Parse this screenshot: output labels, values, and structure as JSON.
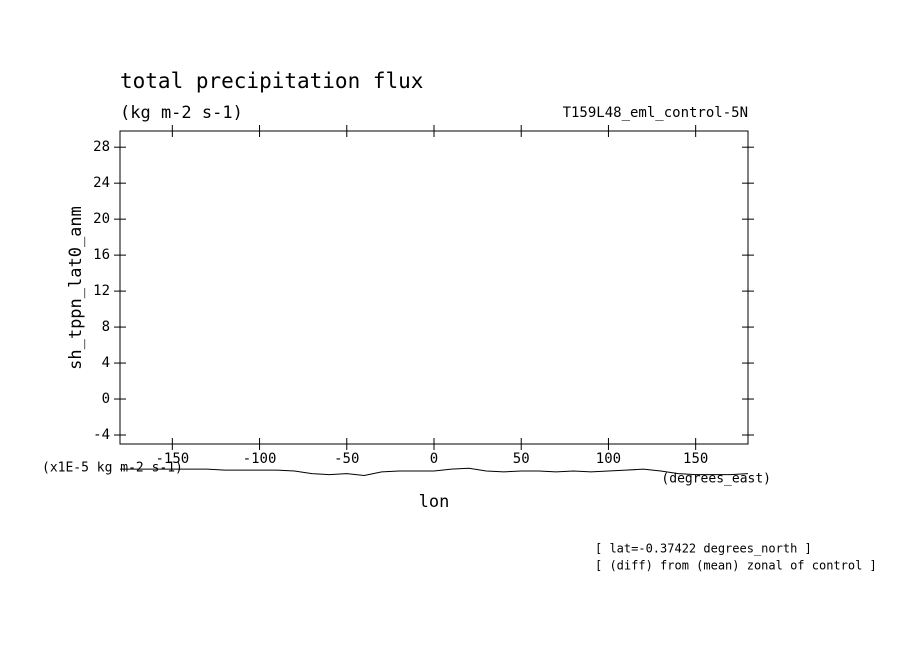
{
  "chart_data": {
    "type": "line",
    "title": "total precipitation flux",
    "subtitle": "(kg m-2 s-1)",
    "dataset_label": "T159L48_eml_control-5N",
    "y_label": "sh_tppn_lat0_anm",
    "y_units": "(x1E-5 kg m-2 s-1)",
    "x_label": "lon",
    "x_units": "(degrees_east)",
    "notes": [
      "[ lat=-0.37422 degrees_north ]",
      "[ (diff) from (mean) zonal of control ]"
    ],
    "x": [
      -180,
      -170,
      -160,
      -150,
      -140,
      -130,
      -120,
      -110,
      -100,
      -90,
      -80,
      -70,
      -60,
      -50,
      -40,
      -30,
      -20,
      -10,
      0,
      10,
      20,
      30,
      40,
      50,
      60,
      70,
      80,
      90,
      100,
      110,
      120,
      130,
      140,
      150,
      160,
      170,
      180
    ],
    "values": [
      -7.8,
      -7.8,
      -7.8,
      -7.8,
      -7.8,
      -7.8,
      -7.9,
      -7.9,
      -7.9,
      -7.9,
      -8.0,
      -8.3,
      -8.4,
      -8.3,
      -8.5,
      -8.1,
      -8.0,
      -8.0,
      -8.0,
      -7.8,
      -7.7,
      -8.0,
      -8.1,
      -8.0,
      -8.0,
      -8.1,
      -8.0,
      -8.1,
      -8.0,
      -7.9,
      -7.8,
      -8.0,
      -8.3,
      -8.4,
      -8.4,
      -8.4,
      -8.3
    ],
    "color": "#000000",
    "xlim": [
      -180,
      180
    ],
    "ylim": [
      -5,
      29.8
    ],
    "xticks": [
      -150,
      -100,
      -50,
      0,
      50,
      100,
      150
    ],
    "yticks": [
      -4,
      0,
      4,
      8,
      12,
      16,
      20,
      24,
      28
    ]
  }
}
